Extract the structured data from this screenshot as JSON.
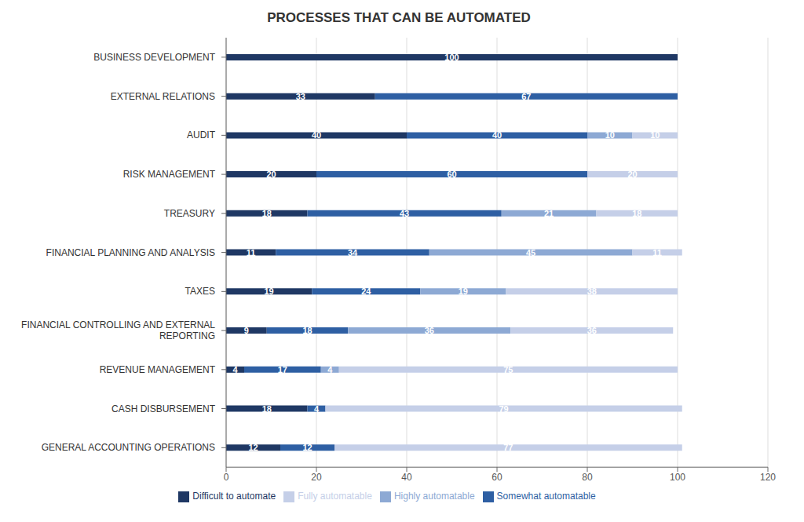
{
  "chart_data": {
    "type": "bar",
    "title": "PROCESSES THAT CAN BE AUTOMATED",
    "orientation": "horizontal",
    "stacked": true,
    "data_labels": true,
    "grid": true,
    "legend": "bottom",
    "categories": [
      "GENERAL ACCOUNTING OPERATIONS",
      "CASH DISBURSEMENT",
      "REVENUE MANAGEMENT",
      "FINANCIAL CONTROLLING AND EXTERNAL\nREPORTING",
      "TAXES",
      "FINANCIAL PLANNING AND ANALYSIS",
      "TREASURY",
      "RISK MANAGEMENT",
      "AUDIT",
      "EXTERNAL RELATIONS",
      "BUSINESS DEVELOPMENT"
    ],
    "series": [
      {
        "name": "Difficult to automate",
        "color": "#1f3864",
        "values": [
          12,
          18,
          4,
          9,
          19,
          11,
          18,
          20,
          40,
          33,
          100
        ]
      },
      {
        "name": "Somewhat automatable",
        "color": "#2e5fa3",
        "values": [
          12,
          4,
          17,
          18,
          24,
          34,
          43,
          60,
          40,
          67,
          0
        ]
      },
      {
        "name": "Highly automatable",
        "color": "#8da9d4",
        "values": [
          0,
          0,
          4,
          36,
          19,
          45,
          21,
          0,
          10,
          0,
          0
        ]
      },
      {
        "name": "Fully automatable",
        "color": "#c5cfe8",
        "values": [
          77,
          79,
          75,
          36,
          38,
          11,
          18,
          20,
          10,
          0,
          0
        ]
      }
    ],
    "xlim": [
      0,
      120
    ],
    "xticks": [
      0,
      20,
      40,
      60,
      80,
      100,
      120
    ]
  }
}
